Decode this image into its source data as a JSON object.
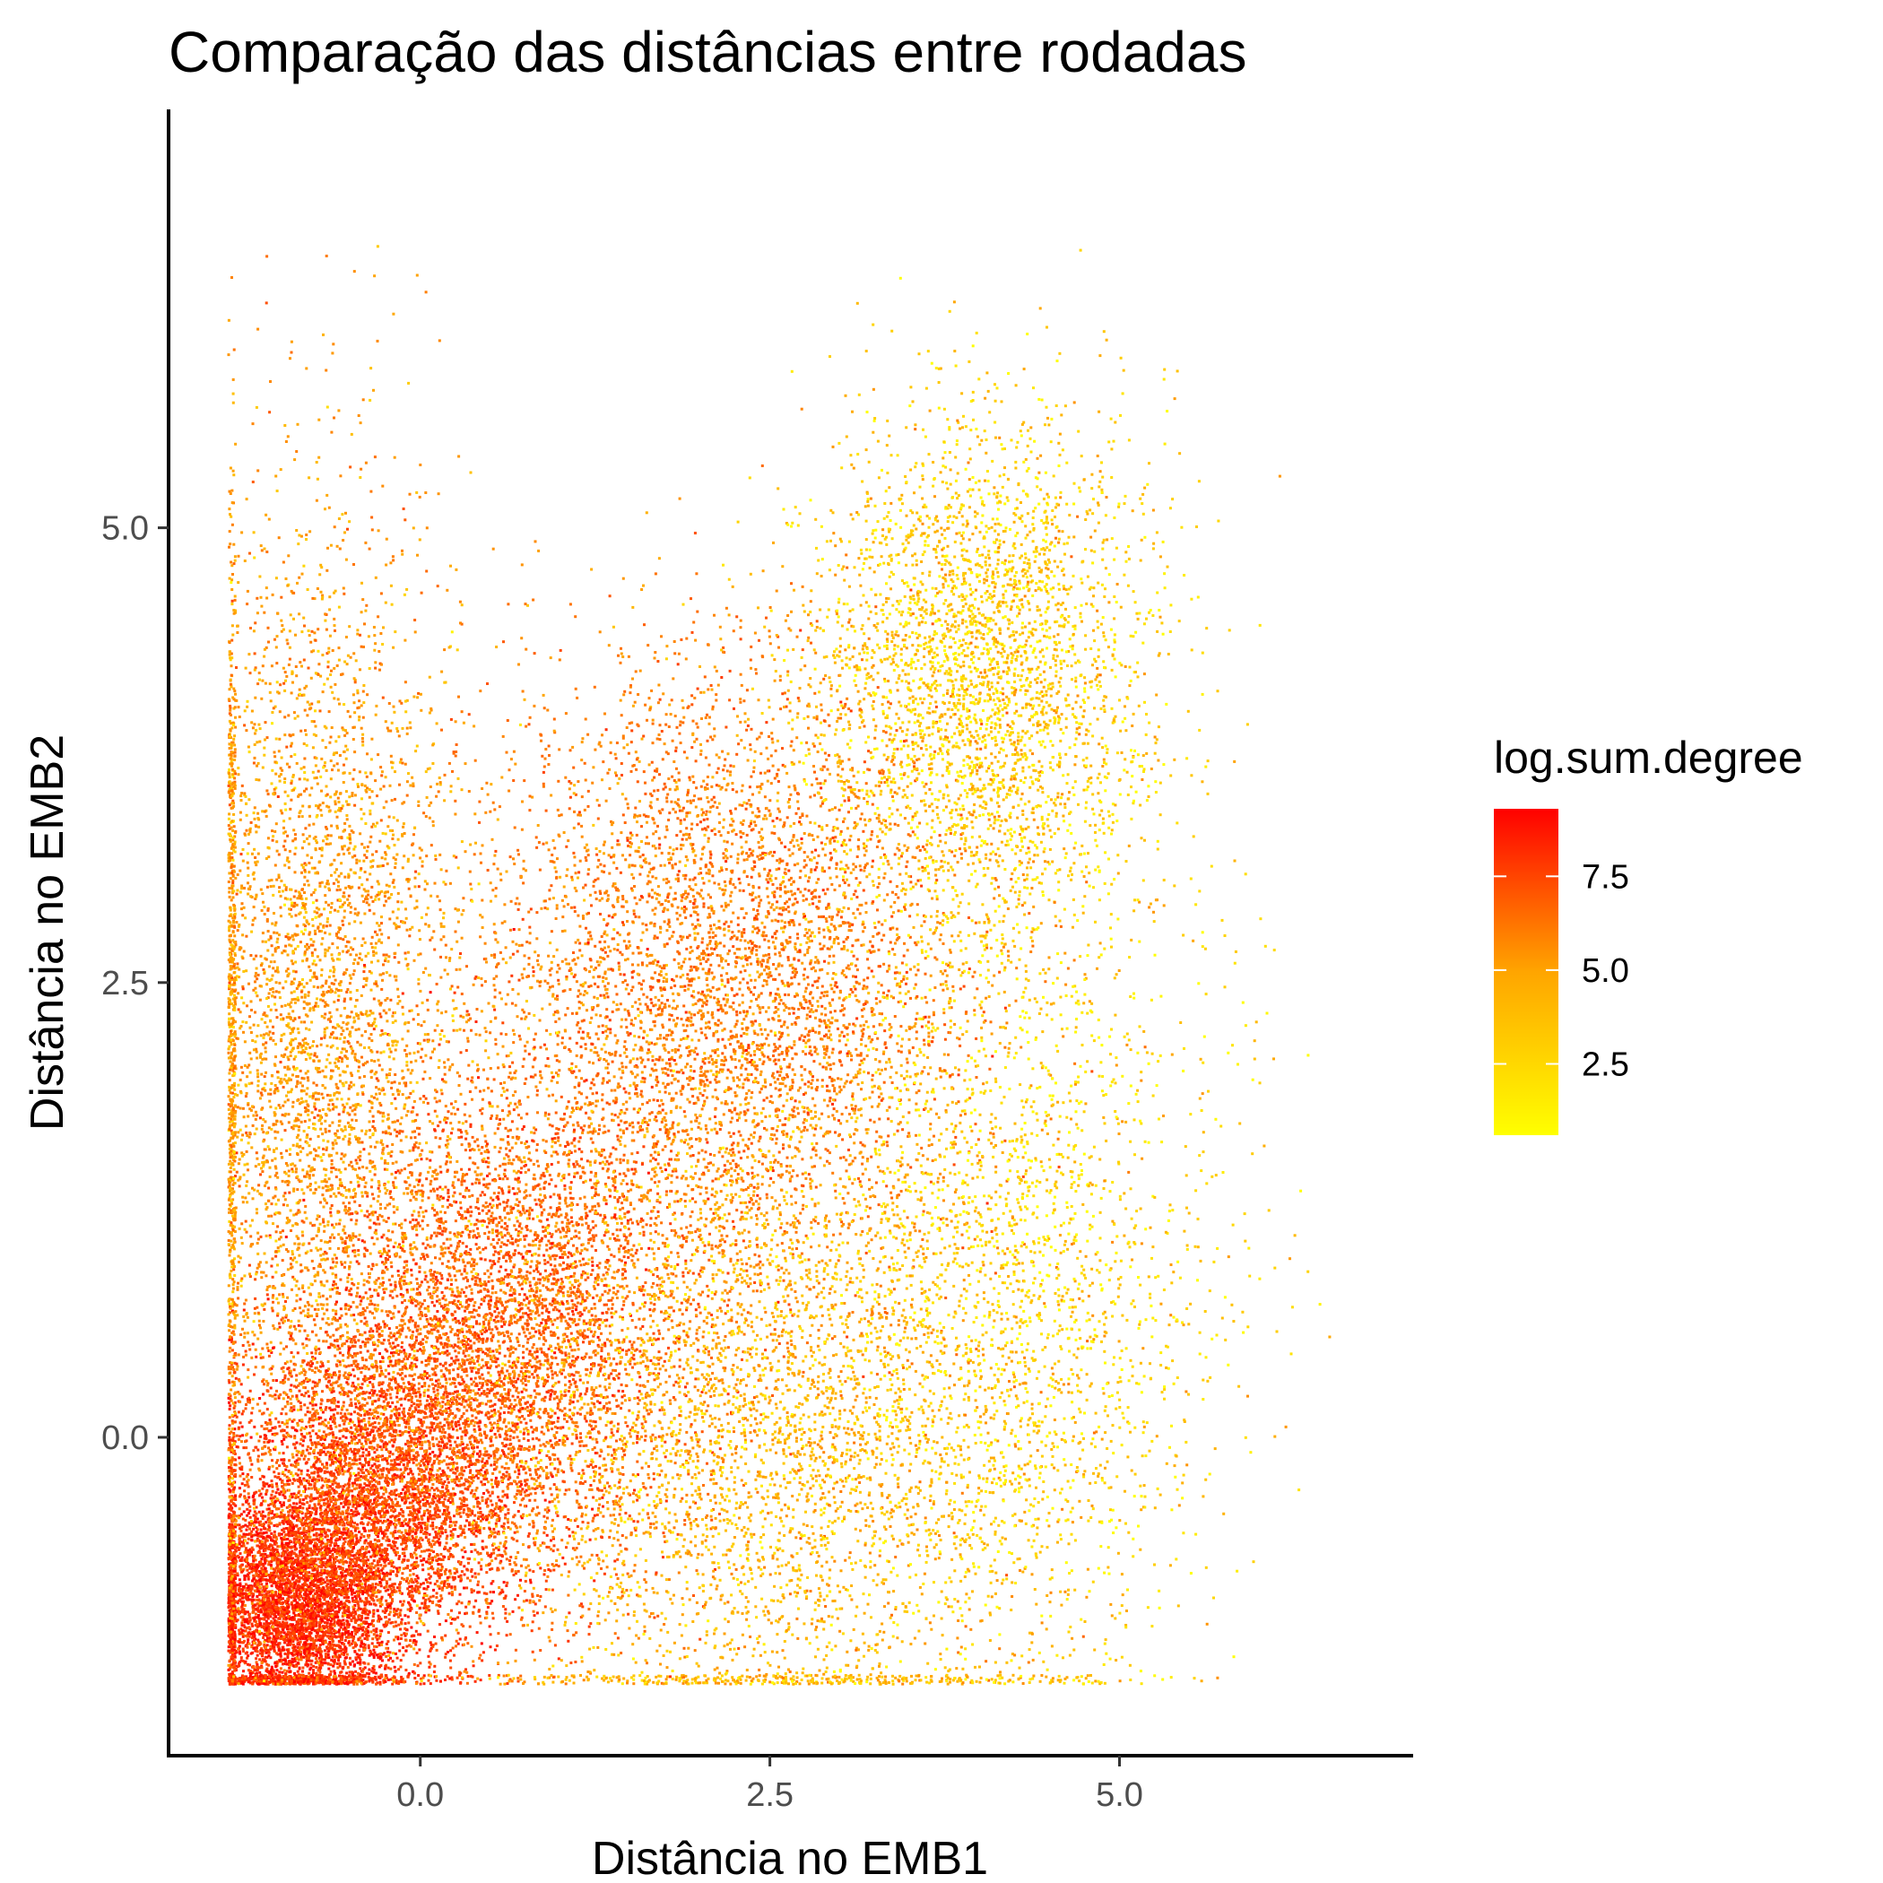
{
  "chart_data": {
    "type": "scatter",
    "title": "Comparação das distâncias entre rodadas",
    "xlabel": "Distância no EMB1",
    "ylabel": "Distância no EMB2",
    "xlim": [
      -1.8,
      7.1
    ],
    "ylim": [
      -1.75,
      7.3
    ],
    "x_ticks": [
      {
        "value": 0.0,
        "label": "0.0"
      },
      {
        "value": 2.5,
        "label": "2.5"
      },
      {
        "value": 5.0,
        "label": "5.0"
      }
    ],
    "y_ticks": [
      {
        "value": 0.0,
        "label": "0.0"
      },
      {
        "value": 2.5,
        "label": "2.5"
      },
      {
        "value": 5.0,
        "label": "5.0"
      }
    ],
    "grid": false,
    "legend": {
      "title": "log.sum.degree",
      "placement": "right",
      "type": "colorbar",
      "range": [
        0.6,
        9.3
      ],
      "low_color": "#FFFF00",
      "high_color": "#FF0000",
      "ticks": [
        {
          "value": 7.5,
          "label": "7.5"
        },
        {
          "value": 5.0,
          "label": "5.0"
        },
        {
          "value": 2.5,
          "label": "2.5"
        }
      ]
    },
    "point_color_range": {
      "low": "#FFFF00",
      "high": "#FF0000"
    },
    "clusters": [
      {
        "x": -0.9,
        "y": -0.9,
        "sx": 0.35,
        "sy": 0.32,
        "weight": 0.13,
        "color_value": 8.0
      },
      {
        "x": -0.3,
        "y": -0.3,
        "sx": 0.55,
        "sy": 0.5,
        "weight": 0.14,
        "color_value": 7.0
      },
      {
        "x": 0.6,
        "y": 0.6,
        "sx": 0.7,
        "sy": 0.7,
        "weight": 0.14,
        "color_value": 6.0
      },
      {
        "x": 2.2,
        "y": 2.5,
        "sx": 0.9,
        "sy": 0.9,
        "weight": 0.16,
        "color_value": 5.0
      },
      {
        "x": -0.8,
        "y": 2.2,
        "sx": 0.55,
        "sy": 1.4,
        "weight": 0.14,
        "color_value": 4.0
      },
      {
        "x": 2.5,
        "y": 0.0,
        "sx": 1.1,
        "sy": 0.9,
        "weight": 0.13,
        "color_value": 3.0
      },
      {
        "x": 4.0,
        "y": 4.2,
        "sx": 0.6,
        "sy": 0.7,
        "weight": 0.1,
        "color_value": 2.2
      },
      {
        "x": 4.3,
        "y": 1.0,
        "sx": 0.7,
        "sy": 1.2,
        "weight": 0.06,
        "color_value": 1.8
      }
    ],
    "data_floor": {
      "x_min": -1.38,
      "y_min": -1.35
    },
    "n_points": 34000
  }
}
